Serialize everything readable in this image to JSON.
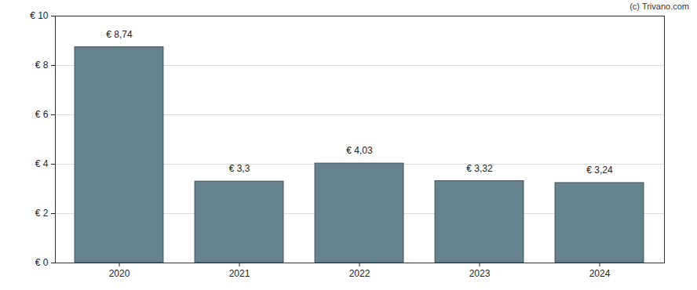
{
  "chart_data": {
    "type": "bar",
    "annotations": [
      "(c) Trivano.com"
    ],
    "categories": [
      "2020",
      "2021",
      "2022",
      "2023",
      "2024"
    ],
    "values": [
      8.74,
      3.3,
      4.03,
      3.32,
      3.24
    ],
    "value_labels": [
      "€ 8,74",
      "€ 3,3",
      "€ 4,03",
      "€ 3,32",
      "€ 3,24"
    ],
    "data_labels": true,
    "color": "#66828f",
    "ylim": [
      0,
      10
    ],
    "yticks": [
      {
        "value": 0,
        "label": "€ 0"
      },
      {
        "value": 2,
        "label": "€ 2"
      },
      {
        "value": 4,
        "label": "€ 4"
      },
      {
        "value": 6,
        "label": "€ 6"
      },
      {
        "value": 8,
        "label": "€ 8"
      },
      {
        "value": 10,
        "label": "€ 10"
      }
    ],
    "grid": true
  }
}
